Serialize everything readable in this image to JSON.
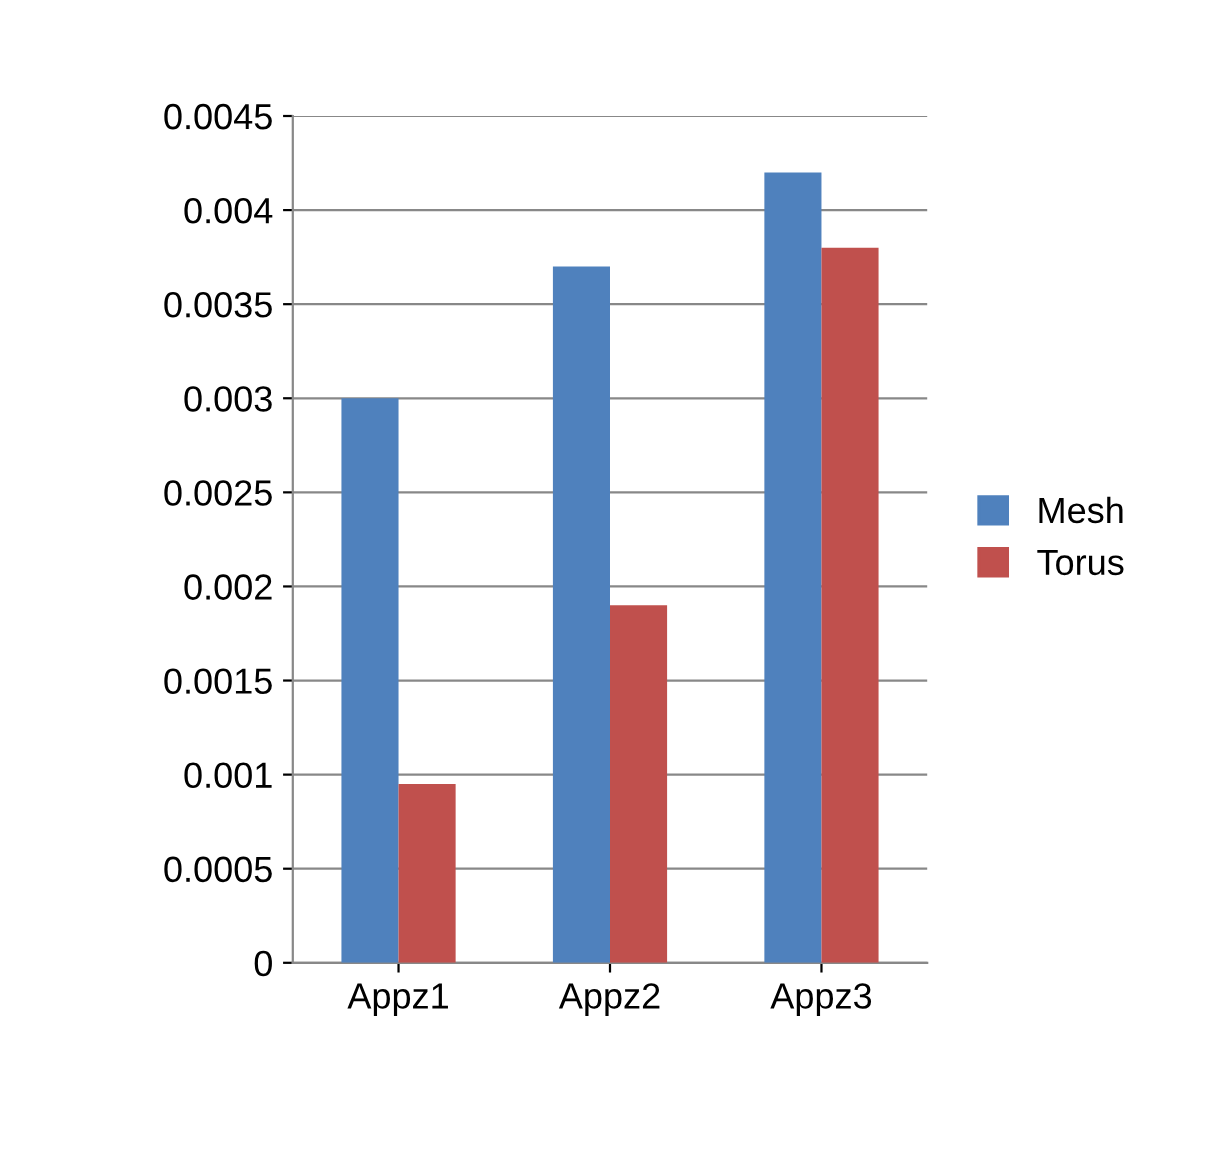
{
  "chart_data": {
    "type": "bar",
    "categories": [
      "Appz1",
      "Appz2",
      "Appz3"
    ],
    "series": [
      {
        "name": "Mesh",
        "color": "#4f81bd",
        "values": [
          0.003,
          0.0037,
          0.0042
        ]
      },
      {
        "name": "Torus",
        "color": "#c0504d",
        "values": [
          0.00095,
          0.0019,
          0.0038
        ]
      }
    ],
    "ylim": [
      0,
      0.0045
    ],
    "yticks": [
      {
        "value": 0,
        "label": "0"
      },
      {
        "value": 0.0005,
        "label": "0.0005"
      },
      {
        "value": 0.001,
        "label": "0.001"
      },
      {
        "value": 0.0015,
        "label": "0.0015"
      },
      {
        "value": 0.002,
        "label": "0.002"
      },
      {
        "value": 0.0025,
        "label": "0.0025"
      },
      {
        "value": 0.003,
        "label": "0.003"
      },
      {
        "value": 0.0035,
        "label": "0.0035"
      },
      {
        "value": 0.004,
        "label": "0.004"
      },
      {
        "value": 0.0045,
        "label": "0.0045"
      }
    ],
    "grid": "y",
    "legend": "right"
  }
}
